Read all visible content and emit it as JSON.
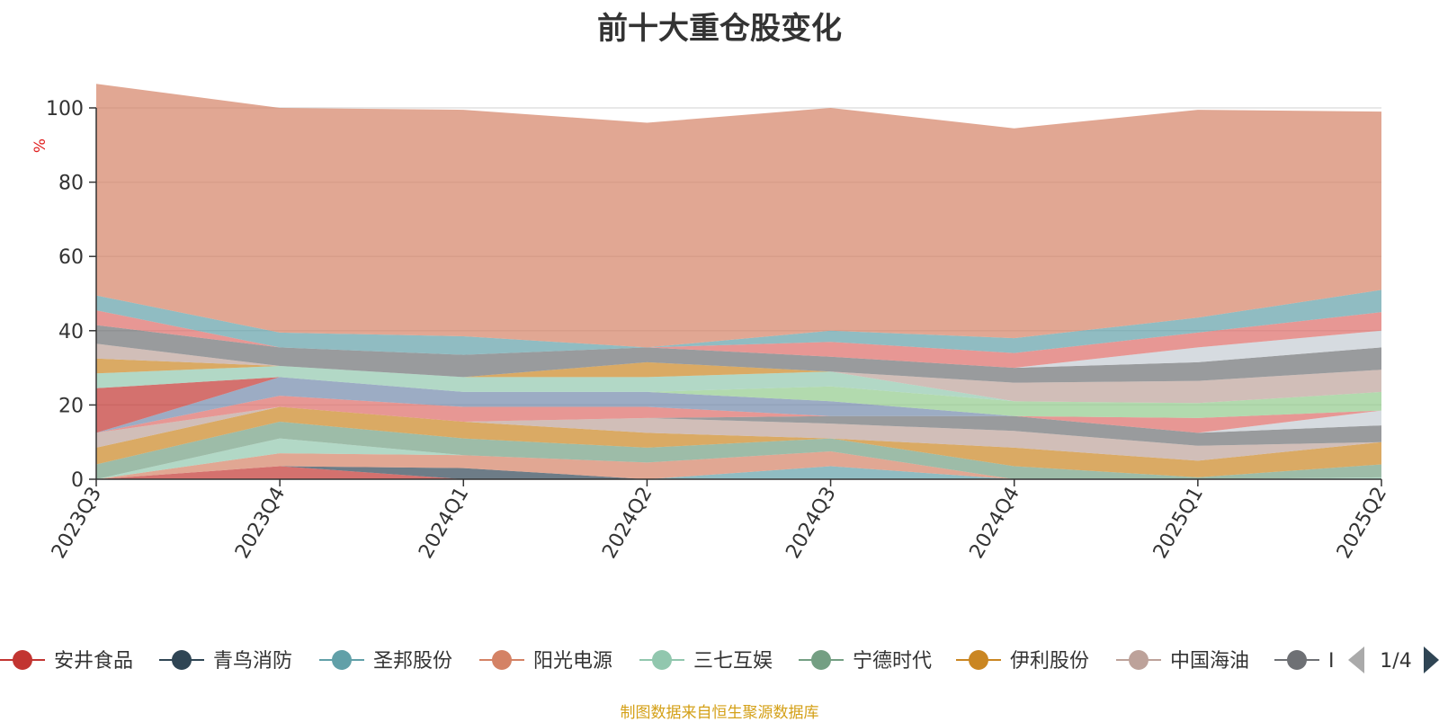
{
  "chart_data": {
    "type": "area",
    "stacked": true,
    "title": "前十大重仓股变化",
    "ylabel": "%",
    "ylim": [
      0,
      100
    ],
    "yticks": [
      0,
      20,
      40,
      60,
      80,
      100
    ],
    "x": [
      "2023Q3",
      "2023Q4",
      "2024Q1",
      "2024Q2",
      "2024Q3",
      "2024Q4",
      "2025Q1",
      "2025Q2"
    ],
    "series": [
      {
        "name": "安井食品",
        "color": "#c23531",
        "values": [
          0,
          3.5,
          0,
          0,
          0,
          0,
          0,
          0
        ]
      },
      {
        "name": "青鸟消防",
        "color": "#2f4554",
        "values": [
          0,
          0,
          3,
          0,
          0,
          0,
          0,
          0
        ]
      },
      {
        "name": "圣邦股份",
        "color": "#61a0a8",
        "values": [
          0,
          0,
          0,
          0,
          3.5,
          0,
          0,
          0
        ]
      },
      {
        "name": "阳光电源",
        "color": "#d48265",
        "values": [
          0,
          3.5,
          3.5,
          4.5,
          4,
          0,
          0,
          0
        ]
      },
      {
        "name": "三七互娱",
        "color": "#91c7ae",
        "values": [
          0,
          4,
          0,
          0,
          0,
          0,
          0,
          0.5
        ]
      },
      {
        "name": "宁德时代",
        "color": "#749f83",
        "values": [
          4,
          4.5,
          4.5,
          4,
          3.5,
          3.5,
          0.5,
          3.5
        ]
      },
      {
        "name": "伊利股份",
        "color": "#ca8622",
        "values": [
          4.5,
          4,
          4.5,
          4,
          0,
          5,
          4.5,
          6
        ]
      },
      {
        "name": "中国海油",
        "color": "#bda29a",
        "values": [
          4,
          0,
          0,
          4,
          4,
          4.5,
          4,
          0
        ]
      },
      {
        "name": "",
        "color": "#6e7074",
        "values": [
          0,
          0,
          0,
          0,
          2,
          4,
          3.5,
          4.5
        ]
      },
      {
        "name": "",
        "color": "#c4ccd3",
        "values": [
          0,
          0,
          0,
          0,
          0,
          0,
          0,
          4
        ]
      },
      {
        "name": "",
        "color": "#dd6b66",
        "values": [
          0,
          3,
          4,
          3,
          0,
          0,
          4,
          0
        ]
      },
      {
        "name": "",
        "color": "#7289ab",
        "values": [
          0,
          5,
          4,
          4,
          4,
          0,
          0,
          0
        ]
      },
      {
        "name": "",
        "color": "#91ca8c",
        "values": [
          0,
          0,
          0,
          0,
          4,
          4,
          4,
          5
        ]
      },
      {
        "name": "",
        "color": "#f49f42",
        "values": [
          0,
          0,
          0,
          0,
          0,
          0,
          0,
          0
        ]
      },
      {
        "name": "",
        "color": "#c23531",
        "values": [
          12,
          0,
          0,
          0,
          0,
          0,
          0,
          0
        ]
      },
      {
        "name": "",
        "color": "#91c7ae",
        "values": [
          4,
          3,
          4,
          4,
          4,
          0,
          0,
          0
        ]
      },
      {
        "name": "",
        "color": "#ca8622",
        "values": [
          4,
          0,
          0,
          4,
          0,
          0,
          0,
          0
        ]
      },
      {
        "name": "",
        "color": "#bda29a",
        "values": [
          4,
          0,
          0,
          0,
          0,
          5,
          6,
          6
        ]
      },
      {
        "name": "",
        "color": "#6e7074",
        "values": [
          5,
          5,
          6,
          4,
          4,
          4,
          5,
          6
        ]
      },
      {
        "name": "",
        "color": "#c4ccd3",
        "values": [
          0,
          0,
          0,
          0,
          0,
          0,
          4,
          4.5
        ]
      },
      {
        "name": "",
        "color": "#dd6b66",
        "values": [
          4,
          0,
          0,
          0,
          4,
          4,
          4,
          5
        ]
      },
      {
        "name": "",
        "color": "#61a0a8",
        "values": [
          4,
          4,
          5,
          0,
          3,
          4,
          4,
          6
        ]
      },
      {
        "name": "",
        "color": "#d48265",
        "values": [
          57,
          60.5,
          61,
          60.5,
          60,
          56.5,
          56,
          48
        ]
      }
    ],
    "legend": {
      "position": "bottom",
      "items": [
        "安井食品",
        "青鸟消防",
        "圣邦股份",
        "阳光电源",
        "三七互娱",
        "宁德时代",
        "伊利股份",
        "中国海油",
        "I"
      ],
      "page_indicator": "1/4"
    }
  },
  "footnote": "制图数据来自恒生聚源数据库"
}
